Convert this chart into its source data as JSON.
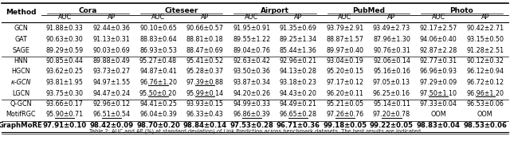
{
  "col_groups": [
    "Cora",
    "Citeseer",
    "Airport",
    "PubMed",
    "Photo"
  ],
  "sub_cols": [
    "AUC",
    "AP"
  ],
  "methods": [
    "GCN",
    "GAT",
    "SAGE",
    "HNN",
    "HGCN",
    "κ-GCN",
    "LGCN",
    "Q-GCN",
    "MotifRGC",
    "GraphMoRE"
  ],
  "data": [
    [
      "91.88±0.33",
      "92.44±0.36",
      "90.10±0.65",
      "90.66±0.57",
      "91.95±0.91",
      "91.35±0.69",
      "93.79±2.91",
      "93.49±2.73",
      "92.17±2.57",
      "90.42±2.71"
    ],
    [
      "90.63±0.30",
      "91.13±0.31",
      "88.83±0.64",
      "88.81±0.18",
      "89.55±1.22",
      "89.25±1.34",
      "88.87±1.57",
      "87.96±1.30",
      "94.06±0.40",
      "93.15±0.50"
    ],
    [
      "89.29±0.59",
      "90.03±0.69",
      "86.93±0.53",
      "88.47±0.69",
      "89.04±0.76",
      "85.44±1.36",
      "89.97±0.40",
      "90.76±0.31",
      "92.87±2.28",
      "91.28±2.51"
    ],
    [
      "90.85±0.44",
      "89.88±0.49",
      "95.27±0.48",
      "95.41±0.52",
      "92.63±0.42",
      "92.96±0.21",
      "93.04±0.19",
      "92.06±0.14",
      "92.77±0.31",
      "90.12±0.32"
    ],
    [
      "93.62±0.25",
      "93.73±0.27",
      "94.87±0.41",
      "95.28±0.37",
      "93.50±0.36",
      "94.13±0.28",
      "95.20±0.15",
      "95.16±0.16",
      "96.96±0.93",
      "96.12±0.94"
    ],
    [
      "93.81±1.95",
      "94.97±1.55",
      "96.76±1.20",
      "97.39±0.88",
      "93.87±0.34",
      "93.18±0.23",
      "97.17±0.12",
      "97.05±0.13",
      "97.29±0.09",
      "96.72±0.12"
    ],
    [
      "93.75±0.30",
      "94.47±0.24",
      "95.50±0.20",
      "95.99±0.14",
      "94.20±0.26",
      "94.43±0.20",
      "96.20±0.11",
      "96.25±0.16",
      "97.50±1.10",
      "96.96±1.20"
    ],
    [
      "93.66±0.17",
      "92.96±0.12",
      "94.41±0.25",
      "93.93±0.15",
      "94.99±0.33",
      "94.49±0.21",
      "95.21±0.05",
      "95.14±0.11",
      "97.33±0.04",
      "96.53±0.06"
    ],
    [
      "95.90±0.71",
      "96.51±0.54",
      "96.04±0.39",
      "96.33±0.43",
      "96.86±0.39",
      "96.65±0.28",
      "97.26±0.76",
      "97.20±0.78",
      "OOM",
      "OOM"
    ],
    [
      "97.91±0.10",
      "98.42±0.09",
      "98.70±0.20",
      "98.84±0.14",
      "97.53±0.28",
      "96.71±0.36",
      "99.18±0.05",
      "99.22±0.05",
      "98.83±0.04",
      "98.53±0.06"
    ]
  ],
  "underlined": {
    "5": [
      2,
      3
    ],
    "6": [
      2,
      3,
      8,
      9
    ],
    "8": [
      0,
      1,
      4,
      5,
      6,
      7
    ]
  },
  "bold_row": 9,
  "separator_after": [
    2,
    6,
    8
  ],
  "caption": "Table 2: AUC and AP (%) at standard deviation) of Link Prediction across benchmark datasets. The best results are indicated",
  "bg_color": "#ffffff",
  "font_size": 5.8,
  "header_font_size": 6.5
}
